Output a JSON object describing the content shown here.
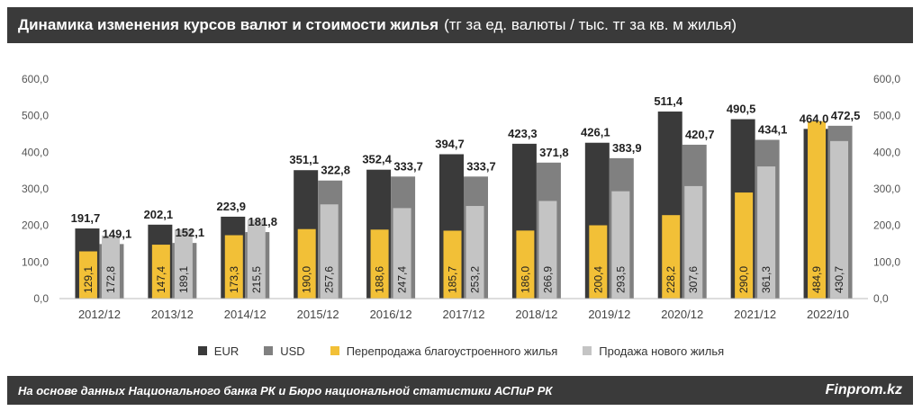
{
  "header": {
    "title": "Динамика изменения курсов валют и стоимости жилья",
    "unit": "(тг за ед. валюты / тыс. тг за кв. м жилья)"
  },
  "footer": {
    "source": "На основе данных Национального банка РК и Бюро национальной статистики АСПиР РК",
    "brand": "Finprom.kz"
  },
  "colors": {
    "eur": "#3a3a3a",
    "usd": "#808080",
    "resale": "#f2c037",
    "new": "#c4c4c4"
  },
  "chart_data": {
    "type": "bar",
    "categories": [
      "2012/12",
      "2013/12",
      "2014/12",
      "2015/12",
      "2016/12",
      "2017/12",
      "2018/12",
      "2019/12",
      "2020/12",
      "2021/12",
      "2022/10"
    ],
    "series": [
      {
        "name": "EUR",
        "values": [
          191.7,
          202.1,
          223.9,
          351.1,
          352.4,
          394.7,
          423.3,
          426.1,
          511.4,
          490.5,
          464.0
        ]
      },
      {
        "name": "USD",
        "values": [
          149.1,
          152.1,
          181.8,
          322.8,
          333.7,
          333.7,
          371.8,
          383.9,
          420.7,
          434.1,
          472.5
        ]
      },
      {
        "name": "Перепродажа благоустроенного жилья",
        "values": [
          129.1,
          147.4,
          173.3,
          190.0,
          188.6,
          185.7,
          186.0,
          200.4,
          228.2,
          290.0,
          484.9
        ]
      },
      {
        "name": "Продажа нового жилья",
        "values": [
          172.8,
          189.1,
          215.5,
          257.6,
          247.4,
          253.2,
          266.9,
          293.5,
          307.6,
          361.3,
          430.7
        ]
      }
    ],
    "yticks": [
      "0,0",
      "100,0",
      "200,0",
      "300,0",
      "400,0",
      "500,0",
      "600,0"
    ],
    "ylim": [
      0,
      600
    ],
    "legend_position": "bottom",
    "grid": false
  }
}
